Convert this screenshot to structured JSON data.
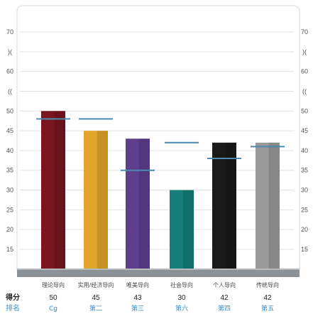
{
  "chart_data": {
    "type": "bar",
    "categories": [
      "理论导向",
      "实用/经济导向",
      "唯美导向",
      "社会导向",
      "个人导向",
      "传统导向"
    ],
    "values": [
      50,
      45,
      43,
      30,
      42,
      42
    ],
    "reference_values": [
      48,
      48,
      35,
      42,
      38,
      41
    ],
    "ranks": [
      "Cg",
      "第二",
      "第三",
      "第六",
      "第四",
      "第五"
    ],
    "bar_colors": [
      "#7a1620",
      "#e3a62a",
      "#5d3f8d",
      "#147e78",
      "#1a1a1a",
      "#9a9a9a"
    ],
    "reference_color": "#4a8ab0",
    "y_ticks_left": [
      "70",
      ")(",
      "60",
      "((",
      "50",
      "45",
      "40",
      "35",
      "30",
      "25",
      "20",
      "15"
    ],
    "y_ticks_right": [
      "70",
      ")(",
      "60",
      "((",
      "50",
      "45",
      "40",
      "35",
      "30",
      "25",
      "20",
      "15"
    ],
    "ylim": [
      10,
      75
    ],
    "grid": true,
    "score_row_label": "得分",
    "rank_row_label": "排名",
    "title": "",
    "xlabel": "",
    "ylabel": ""
  }
}
